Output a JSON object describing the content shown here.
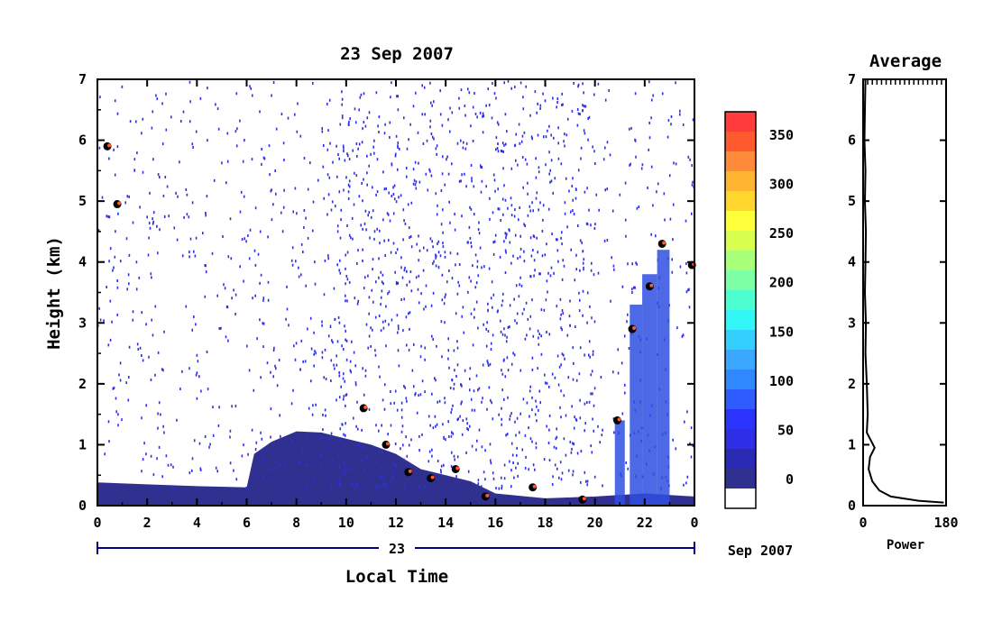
{
  "chart_data": [
    {
      "type": "heatmap",
      "title": "23 Sep 2007",
      "xlabel": "Local Time",
      "ylabel": "Height (km)",
      "x_ticks": [
        "0",
        "2",
        "4",
        "6",
        "8",
        "10",
        "12",
        "14",
        "16",
        "18",
        "20",
        "22",
        "0"
      ],
      "y_ticks": [
        "0",
        "1",
        "2",
        "3",
        "4",
        "5",
        "6",
        "7"
      ],
      "xlim": [
        0,
        24
      ],
      "ylim": [
        0,
        7
      ],
      "date_axis": {
        "day_label": "23",
        "month_label": "Sep 2007"
      },
      "dense_echo_layer": [
        {
          "t": 0.0,
          "top": 0.38
        },
        {
          "t": 2.0,
          "top": 0.35
        },
        {
          "t": 4.0,
          "top": 0.32
        },
        {
          "t": 6.0,
          "top": 0.3
        },
        {
          "t": 6.3,
          "top": 0.85
        },
        {
          "t": 7.0,
          "top": 1.05
        },
        {
          "t": 8.0,
          "top": 1.22
        },
        {
          "t": 9.0,
          "top": 1.2
        },
        {
          "t": 10.0,
          "top": 1.1
        },
        {
          "t": 11.0,
          "top": 1.0
        },
        {
          "t": 12.0,
          "top": 0.85
        },
        {
          "t": 13.0,
          "top": 0.6
        },
        {
          "t": 14.0,
          "top": 0.5
        },
        {
          "t": 15.0,
          "top": 0.4
        },
        {
          "t": 16.0,
          "top": 0.2
        },
        {
          "t": 18.0,
          "top": 0.12
        },
        {
          "t": 20.0,
          "top": 0.15
        },
        {
          "t": 22.0,
          "top": 0.2
        },
        {
          "t": 24.0,
          "top": 0.15
        }
      ],
      "convective_columns": [
        {
          "t0": 20.8,
          "t1": 21.2,
          "top": 1.4
        },
        {
          "t0": 21.4,
          "t1": 21.9,
          "top": 3.3
        },
        {
          "t0": 21.9,
          "t1": 22.5,
          "top": 3.8
        },
        {
          "t0": 22.5,
          "t1": 23.0,
          "top": 4.2
        }
      ],
      "strong_echo_points": [
        {
          "t": 0.4,
          "h": 5.9
        },
        {
          "t": 0.8,
          "h": 4.95
        },
        {
          "t": 10.7,
          "h": 1.6
        },
        {
          "t": 11.6,
          "h": 1.0
        },
        {
          "t": 12.5,
          "h": 0.55
        },
        {
          "t": 13.4,
          "h": 0.45
        },
        {
          "t": 14.4,
          "h": 0.6
        },
        {
          "t": 15.6,
          "h": 0.15
        },
        {
          "t": 17.5,
          "h": 0.3
        },
        {
          "t": 19.5,
          "h": 0.1
        },
        {
          "t": 20.9,
          "h": 1.4
        },
        {
          "t": 21.5,
          "h": 2.9
        },
        {
          "t": 22.2,
          "h": 3.6
        },
        {
          "t": 22.7,
          "h": 4.3
        },
        {
          "t": 23.9,
          "h": 3.95
        }
      ]
    },
    {
      "type": "line",
      "title": "Average",
      "xlabel": "Power",
      "x_ticks": [
        "0",
        "180"
      ],
      "y_ticks": [
        "0",
        "1",
        "2",
        "3",
        "4",
        "5",
        "6",
        "7"
      ],
      "xlim": [
        0,
        180
      ],
      "ylim": [
        0,
        7
      ],
      "x": [
        5,
        4,
        3,
        5,
        4,
        6,
        5,
        4,
        6,
        5,
        8,
        10,
        8,
        25,
        15,
        12,
        20,
        35,
        60,
        120,
        175
      ],
      "y": [
        7.0,
        6.5,
        6.0,
        5.5,
        5.0,
        4.5,
        4.0,
        3.5,
        3.0,
        2.5,
        2.0,
        1.5,
        1.2,
        0.95,
        0.8,
        0.6,
        0.4,
        0.25,
        0.15,
        0.08,
        0.05
      ]
    }
  ],
  "colorbar": {
    "labels": [
      "350",
      "300",
      "250",
      "200",
      "150",
      "100",
      "50",
      "0"
    ],
    "colors": [
      "#ff3b3b",
      "#ff5a2e",
      "#ff8a3a",
      "#ffb532",
      "#ffd52e",
      "#ffff3c",
      "#d8ff50",
      "#a8ff7a",
      "#7dffa6",
      "#4dffd0",
      "#33f6f6",
      "#33d0ff",
      "#3aa8ff",
      "#2f88ff",
      "#2e5cff",
      "#2b33ff",
      "#2e2ee6",
      "#2a2ab4",
      "#303090",
      "#ffffff"
    ]
  }
}
